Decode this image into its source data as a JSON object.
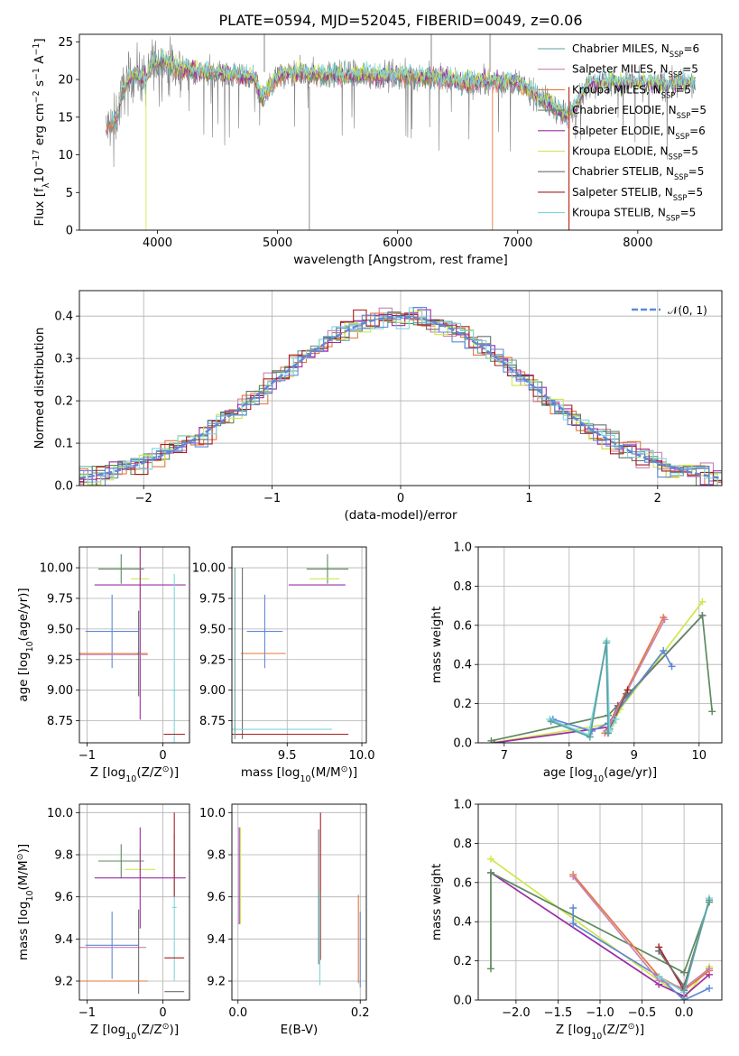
{
  "colors": {
    "chabrier_miles": "#5b9fa0",
    "salpeter_miles": "#c882b4",
    "kroupa_miles": "#e4773a",
    "chabrier_elodie": "#5f8a5f",
    "salpeter_elodie": "#9b2ca6",
    "kroupa_elodie": "#cde84b",
    "chabrier_stelib": "#6e6e6e",
    "salpeter_stelib": "#aa1d1d",
    "kroupa_stelib": "#7fd6dc",
    "normal_curve": "#5f88d8",
    "spectrum_grey": "#808080"
  },
  "chart_data": [
    {
      "type": "line",
      "title": "PLATE=0594, MJD=52045, FIBERID=0049, z=0.06",
      "xlabel": "wavelength [Angstrom, rest frame]",
      "ylabel_parts": [
        "Flux [f",
        "λ",
        "10",
        "−17",
        " erg cm",
        "−2",
        " s",
        "−1",
        " A",
        "−1",
        "]"
      ],
      "xlim": [
        3350,
        8700
      ],
      "ylim": [
        0,
        26
      ],
      "xticks": [
        "4000",
        "5000",
        "6000",
        "7000",
        "8000"
      ],
      "yticks": [
        "0",
        "5",
        "10",
        "15",
        "20",
        "25"
      ],
      "legend_position": "right",
      "legend": [
        {
          "key": "chabrier_miles",
          "parts": [
            "Chabrier MILES, N",
            "SSP",
            "=6"
          ]
        },
        {
          "key": "salpeter_miles",
          "parts": [
            "Salpeter MILES, N",
            "SSP",
            "=5"
          ]
        },
        {
          "key": "kroupa_miles",
          "parts": [
            "Kroupa MILES, N",
            "SSP",
            "=5"
          ]
        },
        {
          "key": "chabrier_elodie",
          "parts": [
            "Chabrier ELODIE, N",
            "SSP",
            "=5"
          ]
        },
        {
          "key": "salpeter_elodie",
          "parts": [
            "Salpeter ELODIE, N",
            "SSP",
            "=6"
          ]
        },
        {
          "key": "kroupa_elodie",
          "parts": [
            "Kroupa ELODIE, N",
            "SSP",
            "=5"
          ]
        },
        {
          "key": "chabrier_stelib",
          "parts": [
            "Chabrier STELIB, N",
            "SSP",
            "=5"
          ]
        },
        {
          "key": "salpeter_stelib",
          "parts": [
            "Salpeter STELIB, N",
            "SSP",
            "=5"
          ]
        },
        {
          "key": "kroupa_stelib",
          "parts": [
            "Kroupa STELIB, N",
            "SSP",
            "=5"
          ]
        }
      ],
      "continuum": [
        [
          3570,
          13.5
        ],
        [
          3650,
          14.5
        ],
        [
          3720,
          19
        ],
        [
          3820,
          21
        ],
        [
          3900,
          19.8
        ],
        [
          3950,
          22
        ],
        [
          4050,
          22.5
        ],
        [
          4150,
          21.5
        ],
        [
          4300,
          21.2
        ],
        [
          4500,
          20.8
        ],
        [
          4800,
          20.3
        ],
        [
          4870,
          17.5
        ],
        [
          5000,
          20.5
        ],
        [
          5200,
          20.8
        ],
        [
          5500,
          20.6
        ],
        [
          6000,
          20.5
        ],
        [
          6300,
          20.4
        ],
        [
          6560,
          19.6
        ],
        [
          6800,
          19.8
        ],
        [
          7000,
          19.6
        ],
        [
          7100,
          18.5
        ],
        [
          7200,
          17.5
        ],
        [
          7420,
          15
        ],
        [
          7600,
          19.6
        ],
        [
          8000,
          19.4
        ],
        [
          8250,
          19.3
        ],
        [
          8480,
          19.4
        ]
      ]
    },
    {
      "type": "histogram",
      "xlabel": "(data-model)/error",
      "ylabel": "Normed distribution",
      "xlim": [
        -2.5,
        2.5
      ],
      "ylim": [
        0,
        0.46
      ],
      "xticks": [
        "−2",
        "−1",
        "0",
        "1",
        "2"
      ],
      "yticks": [
        "0.0",
        "0.1",
        "0.2",
        "0.3",
        "0.4"
      ],
      "legend": [
        {
          "key": "normal_curve",
          "label": "𝒩(0, 1)"
        }
      ],
      "bin_width": 0.1
    },
    {
      "type": "scatter",
      "xlabel_parts": [
        "Z [log",
        "10",
        "(Z/Z",
        "⊙",
        ")]"
      ],
      "ylabel_parts": [
        "age  [log",
        "10",
        "(age/yr)]"
      ],
      "xlim": [
        -1.1,
        0.35
      ],
      "ylim": [
        8.57,
        10.17
      ],
      "xticks": [
        "−1",
        "0"
      ],
      "yticks": [
        "8.75",
        "9.00",
        "9.25",
        "9.50",
        "9.75",
        "10.00"
      ],
      "series": [
        {
          "key": "chabrier_elodie",
          "x": -0.55,
          "y": 9.99,
          "xerr": 0.3,
          "yerr": 0.12
        },
        {
          "key": "kroupa_elodie",
          "x": -0.3,
          "y": 9.91,
          "xerr": 0.12,
          "yerr": 0.24
        },
        {
          "key": "salpeter_elodie",
          "x": -0.3,
          "y": 9.86,
          "xerr": 0.6,
          "yerr": 1.1
        },
        {
          "key": "normal_curve",
          "x": -0.67,
          "y": 9.48,
          "xerr": 0.35,
          "yerr": 0.3
        },
        {
          "key": "kroupa_miles",
          "x": -0.65,
          "y": 9.3,
          "xerr": 0.45,
          "yerr": 0.0
        },
        {
          "key": "salpeter_miles",
          "x": -0.65,
          "y": 9.29,
          "xerr": 0.45,
          "yerr": 0.0
        },
        {
          "key": "chabrier_stelib",
          "x": -0.32,
          "y": 9.3,
          "xerr": 0.02,
          "yerr": 0.35
        },
        {
          "key": "kroupa_stelib",
          "x": 0.15,
          "y": 9.0,
          "xerr": 0.03,
          "yerr": 0.95
        },
        {
          "key": "salpeter_stelib",
          "x": 0.15,
          "y": 8.64,
          "xerr": 0.14,
          "yerr": 0.0
        }
      ]
    },
    {
      "type": "scatter",
      "xlabel_parts": [
        "mass [log",
        "10",
        "(M/M",
        "⊙",
        ")]"
      ],
      "xlim": [
        9.13,
        10.03
      ],
      "ylim": [
        8.57,
        10.17
      ],
      "xticks": [
        "9.5",
        "10.0"
      ],
      "yticks": [
        "8.75",
        "9.00",
        "9.25",
        "9.50",
        "9.75",
        "10.00"
      ],
      "series": [
        {
          "key": "chabrier_elodie",
          "x": 9.77,
          "y": 9.99,
          "xerr": 0.14,
          "yerr": 0.12
        },
        {
          "key": "kroupa_elodie",
          "x": 9.75,
          "y": 9.91,
          "xerr": 0.1,
          "yerr": 0.0
        },
        {
          "key": "salpeter_elodie",
          "x": 9.7,
          "y": 9.86,
          "xerr": 0.19,
          "yerr": 0.0
        },
        {
          "key": "normal_curve",
          "x": 9.35,
          "y": 9.48,
          "xerr": 0.12,
          "yerr": 0.3
        },
        {
          "key": "kroupa_miles",
          "x": 9.34,
          "y": 9.3,
          "xerr": 0.15,
          "yerr": 0.0
        },
        {
          "key": "chabrier_stelib",
          "x": 9.2,
          "y": 9.3,
          "xerr": 0.0,
          "yerr": 0.7
        },
        {
          "key": "kroupa_stelib",
          "x": 9.18,
          "y": 8.68,
          "xerr": 0.62,
          "yerr": 0.0
        },
        {
          "key": "salpeter_stelib",
          "x": 9.31,
          "y": 8.64,
          "xerr": 0.6,
          "yerr": 0.0
        },
        {
          "key": "chabrier_miles",
          "x": 9.15,
          "y": 9.3,
          "xerr": 0.0,
          "yerr": 0.7
        }
      ]
    },
    {
      "type": "line",
      "xlabel_parts": [
        "age  [log",
        "10",
        "(age/yr)]"
      ],
      "ylabel": "mass weight",
      "xlim": [
        6.6,
        10.35
      ],
      "ylim": [
        0,
        1
      ],
      "xticks": [
        "7",
        "8",
        "9",
        "10"
      ],
      "yticks": [
        "0.0",
        "0.2",
        "0.4",
        "0.6",
        "0.8",
        "1.0"
      ],
      "series": [
        {
          "key": "kroupa_elodie",
          "x": [
            6.82,
            8.68,
            8.78,
            10.05
          ],
          "y": [
            0.0,
            0.1,
            0.17,
            0.72
          ]
        },
        {
          "key": "salpeter_elodie",
          "x": [
            6.85,
            8.6,
            8.75,
            10.05
          ],
          "y": [
            0.0,
            0.08,
            0.19,
            0.65
          ]
        },
        {
          "key": "chabrier_elodie",
          "x": [
            6.8,
            8.6,
            10.05,
            10.2
          ],
          "y": [
            0.01,
            0.14,
            0.65,
            0.16
          ]
        },
        {
          "key": "normal_curve",
          "x": [
            7.75,
            8.35,
            8.6,
            9.45,
            9.58
          ],
          "y": [
            0.12,
            0.06,
            0.1,
            0.47,
            0.39
          ]
        },
        {
          "key": "kroupa_miles",
          "x": [
            8.55,
            9.45
          ],
          "y": [
            0.05,
            0.64
          ]
        },
        {
          "key": "salpeter_miles",
          "x": [
            8.57,
            9.47
          ],
          "y": [
            0.06,
            0.63
          ]
        },
        {
          "key": "salpeter_stelib",
          "x": [
            8.6,
            8.9
          ],
          "y": [
            0.05,
            0.27
          ]
        },
        {
          "key": "chabrier_stelib",
          "x": [
            8.62,
            8.88
          ],
          "y": [
            0.07,
            0.25
          ]
        },
        {
          "key": "kroupa_stelib",
          "x": [
            7.7,
            8.3,
            8.58,
            8.62,
            8.72
          ],
          "y": [
            0.12,
            0.04,
            0.52,
            0.06,
            0.12
          ]
        },
        {
          "key": "chabrier_miles",
          "x": [
            7.72,
            8.32,
            8.57,
            8.6
          ],
          "y": [
            0.11,
            0.03,
            0.51,
            0.05
          ]
        }
      ]
    },
    {
      "type": "scatter",
      "xlabel_parts": [
        "Z [log",
        "10",
        "(Z/Z",
        "⊙",
        ")]"
      ],
      "ylabel_parts": [
        "mass [log",
        "10",
        "(M/M",
        "⊙",
        ")]"
      ],
      "xlim": [
        -1.1,
        0.35
      ],
      "ylim": [
        9.11,
        10.04
      ],
      "xticks": [
        "−1",
        "0"
      ],
      "yticks": [
        "9.2",
        "9.4",
        "9.6",
        "9.8",
        "10.0"
      ],
      "series": [
        {
          "key": "chabrier_elodie",
          "x": -0.55,
          "y": 9.77,
          "xerr": 0.3,
          "yerr": 0.08
        },
        {
          "key": "kroupa_elodie",
          "x": -0.3,
          "y": 9.73,
          "xerr": 0.2,
          "yerr": 0.1
        },
        {
          "key": "salpeter_elodie",
          "x": -0.3,
          "y": 9.69,
          "xerr": 0.6,
          "yerr": 0.24
        },
        {
          "key": "normal_curve",
          "x": -0.67,
          "y": 9.37,
          "xerr": 0.35,
          "yerr": 0.16
        },
        {
          "key": "salpeter_miles",
          "x": -0.67,
          "y": 9.36,
          "xerr": 0.45,
          "yerr": 0.0
        },
        {
          "key": "chabrier_stelib",
          "x": -0.32,
          "y": 9.34,
          "xerr": 0.0,
          "yerr": 0.2
        },
        {
          "key": "kroupa_miles",
          "x": -0.65,
          "y": 9.2,
          "xerr": 0.45,
          "yerr": 0.0
        },
        {
          "key": "kroupa_stelib",
          "x": 0.15,
          "y": 9.55,
          "xerr": 0.03,
          "yerr": 0.35
        },
        {
          "key": "salpeter_stelib",
          "x": 0.15,
          "y": 9.31,
          "xerr": 0.13,
          "yerr": 0.0
        },
        {
          "key": "chabrier_stelib",
          "x": 0.15,
          "y": 9.15,
          "xerr": 0.13,
          "yerr": 0.0
        },
        {
          "key": "salpeter_stelib",
          "x": 0.15,
          "y": 9.8,
          "xerr": 0.0,
          "yerr": 0.2
        }
      ]
    },
    {
      "type": "scatter",
      "xlabel": "E(B-V)",
      "xlim": [
        -0.01,
        0.21
      ],
      "ylim": [
        9.11,
        10.04
      ],
      "xticks": [
        "0.0",
        "0.2"
      ],
      "yticks": [
        "9.2",
        "9.4",
        "9.6",
        "9.8",
        "10.0"
      ],
      "series": [
        {
          "key": "salpeter_elodie",
          "x": 0.002,
          "y": 9.7,
          "xerr": 0.0,
          "yerr": 0.23
        },
        {
          "key": "kroupa_elodie",
          "x": 0.004,
          "y": 9.7,
          "xerr": 0.0,
          "yerr": 0.23
        },
        {
          "key": "chabrier_stelib",
          "x": 0.132,
          "y": 9.6,
          "xerr": 0.0,
          "yerr": 0.32
        },
        {
          "key": "salpeter_stelib",
          "x": 0.135,
          "y": 9.65,
          "xerr": 0.0,
          "yerr": 0.35
        },
        {
          "key": "kroupa_stelib",
          "x": 0.134,
          "y": 9.4,
          "xerr": 0.0,
          "yerr": 0.22
        },
        {
          "key": "kroupa_miles",
          "x": 0.197,
          "y": 9.4,
          "xerr": 0.0,
          "yerr": 0.21
        },
        {
          "key": "normal_curve",
          "x": 0.2,
          "y": 9.35,
          "xerr": 0.0,
          "yerr": 0.18
        }
      ]
    },
    {
      "type": "line",
      "xlabel_parts": [
        "Z [log",
        "10",
        "(Z/Z",
        "⊙",
        ")]"
      ],
      "ylabel": "mass weight",
      "xlim": [
        -2.45,
        0.45
      ],
      "ylim": [
        0,
        1
      ],
      "xticks": [
        "−2.0",
        "−1.5",
        "−1.0",
        "−0.5",
        "0.0"
      ],
      "yticks": [
        "0.0",
        "0.2",
        "0.4",
        "0.6",
        "0.8",
        "1.0"
      ],
      "series": [
        {
          "key": "kroupa_elodie",
          "x": [
            -2.3,
            -0.3,
            0.0,
            0.3
          ],
          "y": [
            0.72,
            0.1,
            0.01,
            0.17
          ]
        },
        {
          "key": "salpeter_elodie",
          "x": [
            -2.3,
            -0.3,
            0.0,
            0.3
          ],
          "y": [
            0.65,
            0.08,
            0.02,
            0.13
          ]
        },
        {
          "key": "chabrier_elodie",
          "x": [
            -2.3,
            -2.3,
            0.0,
            0.3
          ],
          "y": [
            0.16,
            0.65,
            0.14,
            0.5
          ]
        },
        {
          "key": "normal_curve",
          "x": [
            -1.32,
            -1.32,
            -0.3,
            0.0,
            0.3
          ],
          "y": [
            0.47,
            0.39,
            0.12,
            0.0,
            0.06
          ]
        },
        {
          "key": "kroupa_miles",
          "x": [
            -1.32,
            -0.3,
            0.0,
            0.3
          ],
          "y": [
            0.64,
            0.12,
            0.05,
            0.15
          ]
        },
        {
          "key": "salpeter_miles",
          "x": [
            -1.32,
            -0.3,
            0.0,
            0.3
          ],
          "y": [
            0.63,
            0.1,
            0.06,
            0.16
          ]
        },
        {
          "key": "salpeter_stelib",
          "x": [
            -0.3,
            0.0
          ],
          "y": [
            0.27,
            0.05
          ]
        },
        {
          "key": "chabrier_stelib",
          "x": [
            -0.3,
            0.0,
            0.3
          ],
          "y": [
            0.25,
            0.07,
            0.51
          ]
        },
        {
          "key": "kroupa_stelib",
          "x": [
            -0.3,
            0.0,
            0.3
          ],
          "y": [
            0.12,
            0.04,
            0.52
          ]
        },
        {
          "key": "chabrier_miles",
          "x": [
            0.0,
            0.3
          ],
          "y": [
            0.05,
            0.51
          ]
        }
      ]
    }
  ]
}
